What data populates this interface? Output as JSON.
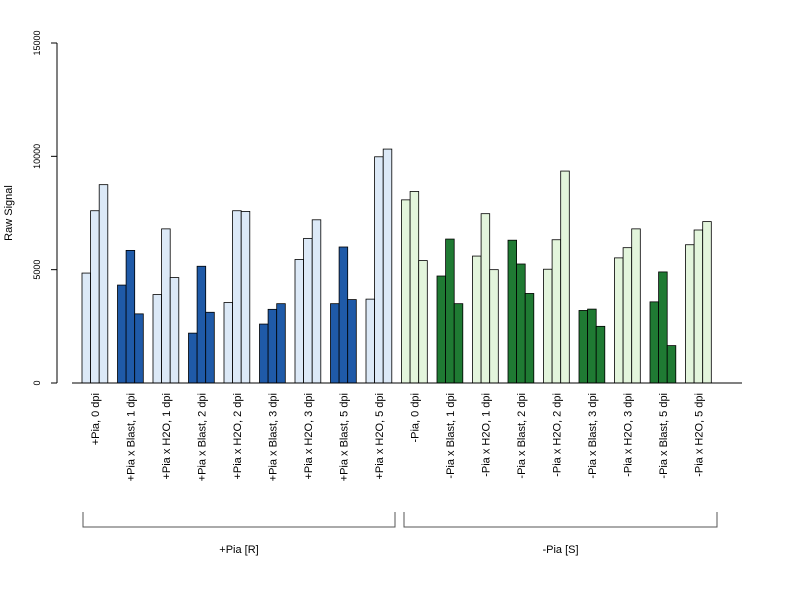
{
  "chart_data": {
    "type": "bar",
    "ylabel": "Raw Signal",
    "xlabel": "",
    "title": "",
    "ylim": [
      0,
      15000
    ],
    "yticks": [
      0,
      5000,
      10000,
      15000
    ],
    "colors": {
      "pia_light": "#dce9f7",
      "pia_dark": "#1f5aa8",
      "nopia_light": "#e3f5dc",
      "nopia_dark": "#1f7a33"
    },
    "categories": [
      {
        "label": "+Pia, 0 dpi",
        "shade": "pia_light",
        "values": [
          4850,
          7600,
          8750
        ]
      },
      {
        "label": "+Pia x Blast, 1 dpi",
        "shade": "pia_dark",
        "values": [
          4320,
          5850,
          3050
        ]
      },
      {
        "label": "+Pia x H2O, 1 dpi",
        "shade": "pia_light",
        "values": [
          3900,
          6800,
          4650
        ]
      },
      {
        "label": "+Pia x Blast, 2 dpi",
        "shade": "pia_dark",
        "values": [
          2200,
          5150,
          3120
        ]
      },
      {
        "label": "+Pia x H2O, 2 dpi",
        "shade": "pia_light",
        "values": [
          3550,
          7600,
          7570
        ]
      },
      {
        "label": "+Pia x Blast, 3 dpi",
        "shade": "pia_dark",
        "values": [
          2600,
          3250,
          3500
        ]
      },
      {
        "label": "+Pia x H2O, 3 dpi",
        "shade": "pia_light",
        "values": [
          5450,
          6380,
          7200
        ]
      },
      {
        "label": "+Pia x Blast, 5 dpi",
        "shade": "pia_dark",
        "values": [
          3500,
          6000,
          3680
        ]
      },
      {
        "label": "+Pia x H2O, 5 dpi",
        "shade": "pia_light",
        "values": [
          3700,
          9980,
          10320
        ]
      },
      {
        "label": "-Pia, 0 dpi",
        "shade": "nopia_light",
        "values": [
          8080,
          8450,
          5400
        ]
      },
      {
        "label": "-Pia x Blast, 1 dpi",
        "shade": "nopia_dark",
        "values": [
          4720,
          6350,
          3500
        ]
      },
      {
        "label": "-Pia x H2O, 1 dpi",
        "shade": "nopia_light",
        "values": [
          5600,
          7470,
          5000
        ]
      },
      {
        "label": "-Pia x Blast, 2 dpi",
        "shade": "nopia_dark",
        "values": [
          6300,
          5250,
          3950
        ]
      },
      {
        "label": "-Pia x H2O, 2 dpi",
        "shade": "nopia_light",
        "values": [
          5020,
          6320,
          9350
        ]
      },
      {
        "label": "-Pia x Blast, 3 dpi",
        "shade": "nopia_dark",
        "values": [
          3200,
          3260,
          2500
        ]
      },
      {
        "label": "-Pia x H2O, 3 dpi",
        "shade": "nopia_light",
        "values": [
          5520,
          5970,
          6800
        ]
      },
      {
        "label": "-Pia x Blast, 5 dpi",
        "shade": "nopia_dark",
        "values": [
          3580,
          4900,
          1650
        ]
      },
      {
        "label": "-Pia x H2O, 5 dpi",
        "shade": "nopia_light",
        "values": [
          6100,
          6750,
          7120
        ]
      }
    ],
    "groups": [
      {
        "label": "+Pia [R]",
        "category_range": [
          0,
          8
        ]
      },
      {
        "label": "-Pia [S]",
        "category_range": [
          9,
          17
        ]
      }
    ],
    "grid": false,
    "legend": "none"
  }
}
